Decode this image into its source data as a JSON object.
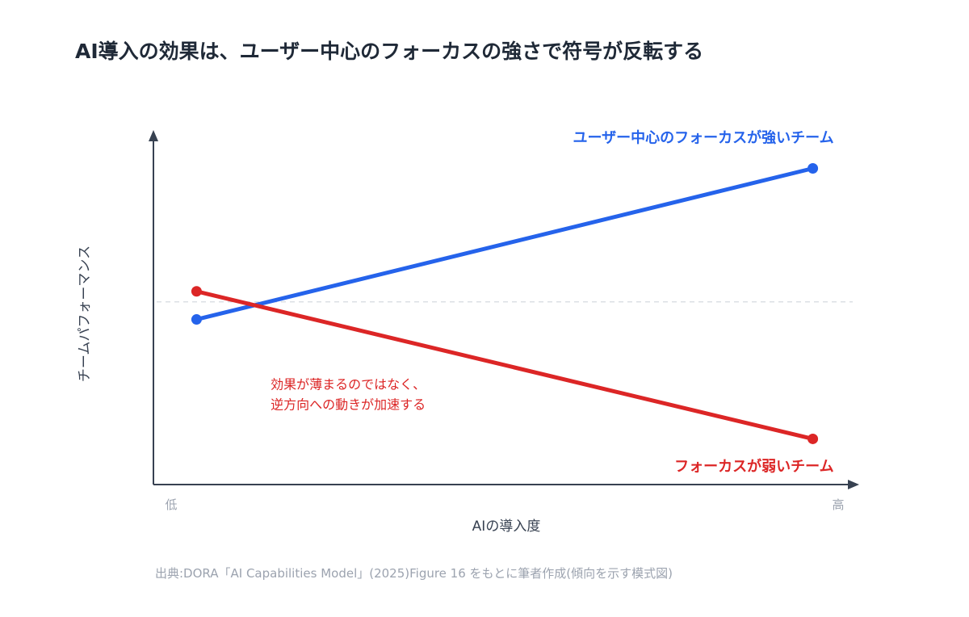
{
  "page": {
    "title": "AI導入の効果は、ユーザー中心のフォーカスの強さで符号が反転する",
    "source": "出典:DORA「AI Capabilities Model」(2025)Figure 16 をもとに筆者作成(傾向を示す模式図)"
  },
  "chart_data": {
    "type": "line",
    "title": "AI導入の効果は、ユーザー中心のフォーカスの強さで符号が反転する",
    "xlabel": "AIの導入度",
    "ylabel": "チームパフォーマンス",
    "x_ticks": [
      "低",
      "高"
    ],
    "x": [
      0,
      1
    ],
    "xlim": [
      -0.07,
      1.07
    ],
    "ylim": [
      0,
      1
    ],
    "baseline": 0.52,
    "grid": false,
    "series": [
      {
        "name": "ユーザー中心のフォーカスが強いチーム",
        "color": "#2563eb",
        "values": [
          0.47,
          0.9
        ],
        "label_anchor": "end"
      },
      {
        "name": "フォーカスが弱いチーム",
        "color": "#dc2626",
        "values": [
          0.55,
          0.13
        ],
        "label_anchor": "end"
      }
    ],
    "annotations": [
      {
        "lines": [
          "効果が薄まるのではなく、",
          "逆方向への動きが加速する"
        ],
        "color": "#dc2626",
        "x": 0.09,
        "y": 0.25
      }
    ],
    "colors": {
      "axis": "#374151",
      "baseline": "#d1d5db",
      "tick": "#9ca3af",
      "label": "#374151"
    }
  }
}
